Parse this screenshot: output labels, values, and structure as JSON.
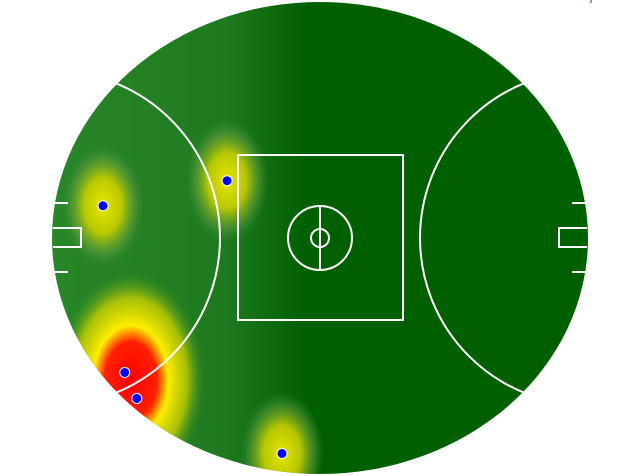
{
  "chart_data": {
    "type": "heatmap",
    "title": "",
    "field": {
      "shape": "oval",
      "length_m": 165,
      "width_m": 145,
      "surface_color": "#006000"
    },
    "colormap": [
      "#006000",
      "#ffff00",
      "#ff0000"
    ],
    "marker_color": "#0000ff",
    "points": [
      {
        "x": -66.8,
        "y": 9.9,
        "intensity": 0.6
      },
      {
        "x": -28.6,
        "y": 17.6,
        "intensity": 0.55
      },
      {
        "x": -60.1,
        "y": -41.3,
        "intensity": 1.0
      },
      {
        "x": -56.4,
        "y": -49.3,
        "intensity": 1.0
      },
      {
        "x": -11.7,
        "y": -66.2,
        "intensity": 0.55
      }
    ]
  }
}
